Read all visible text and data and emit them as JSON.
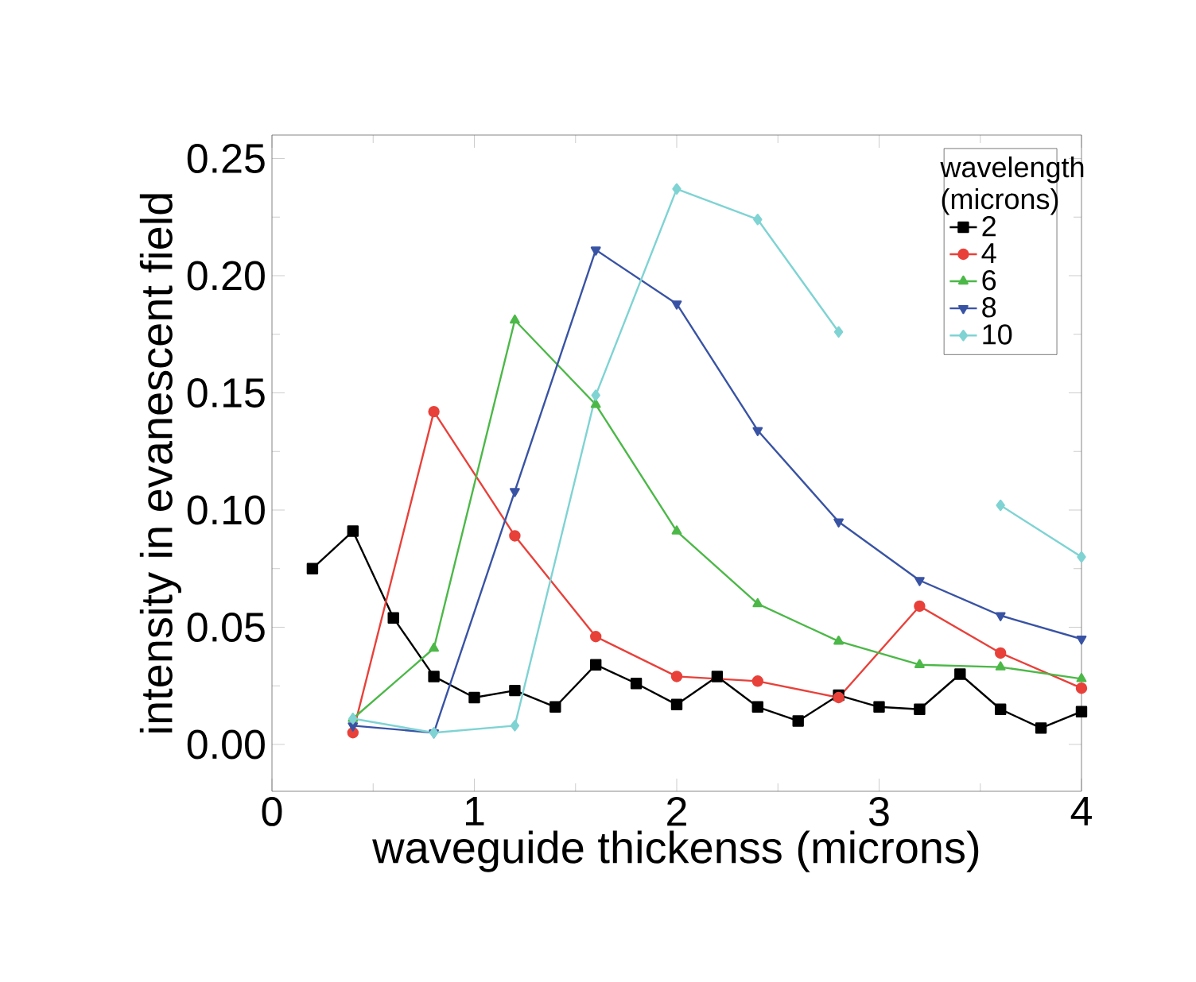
{
  "chart_data": {
    "type": "line",
    "xlabel": "waveguide thickenss (microns)",
    "ylabel": "intensity in evanescent field",
    "legend_title": "wavelength (microns)",
    "legend": "top right",
    "x": [
      0.2,
      0.4,
      0.6,
      0.8,
      1.0,
      1.2,
      1.4,
      1.6,
      1.8,
      2.0,
      2.2,
      2.4,
      2.6,
      2.8,
      3.0,
      3.2,
      3.4,
      3.6,
      3.8,
      4.0
    ],
    "series": [
      {
        "name": "2",
        "color": "#000000",
        "marker": "square",
        "values": [
          0.075,
          0.091,
          0.054,
          0.029,
          0.02,
          0.023,
          0.016,
          0.034,
          0.026,
          0.017,
          0.029,
          0.016,
          0.01,
          0.021,
          0.016,
          0.015,
          0.03,
          0.015,
          0.007,
          0.014
        ]
      },
      {
        "name": "4",
        "color": "#e8413a",
        "marker": "circle",
        "x": [
          0.4,
          0.8,
          1.2,
          1.6,
          2.0,
          2.4,
          2.8,
          3.2,
          3.6,
          4.0
        ],
        "values": [
          0.005,
          0.142,
          0.089,
          0.046,
          0.029,
          0.027,
          0.02,
          0.059,
          0.039,
          0.024
        ]
      },
      {
        "name": "6",
        "color": "#4cb848",
        "marker": "triangle",
        "x": [
          0.4,
          0.8,
          1.2,
          1.6,
          2.0,
          2.4,
          2.8,
          3.2,
          3.6,
          4.0
        ],
        "values": [
          0.011,
          0.041,
          0.181,
          0.145,
          0.091,
          0.06,
          0.044,
          0.034,
          0.033,
          0.028
        ]
      },
      {
        "name": "8",
        "color": "#3953a4",
        "marker": "triangle-down",
        "x": [
          0.4,
          0.8,
          1.2,
          1.6,
          2.0,
          2.4,
          2.8,
          3.2,
          3.6,
          4.0
        ],
        "values": [
          0.008,
          0.005,
          0.108,
          0.211,
          0.188,
          0.134,
          0.095,
          0.07,
          0.055,
          0.045
        ]
      },
      {
        "name": "10",
        "color": "#7fd3d3",
        "marker": "diamond",
        "x": [
          0.4,
          0.8,
          1.2,
          1.6,
          2.0,
          2.4,
          2.8,
          3.2,
          3.6,
          4.0
        ],
        "values": [
          0.011,
          0.005,
          0.008,
          0.149,
          0.237,
          0.224,
          0.176,
          null,
          0.102,
          0.08
        ]
      }
    ],
    "xlim": [
      0,
      4
    ],
    "xticks": [
      0,
      1,
      2,
      3,
      4
    ],
    "ylim": [
      -0.02,
      0.26
    ],
    "yticks": [
      {
        "value": 0,
        "label": "0.00"
      },
      {
        "value": 0.05,
        "label": "0.05"
      },
      {
        "value": 0.1,
        "label": "0.10"
      },
      {
        "value": 0.15,
        "label": "0.15"
      },
      {
        "value": 0.2,
        "label": "0.20"
      },
      {
        "value": 0.25,
        "label": "0.25"
      }
    ]
  }
}
